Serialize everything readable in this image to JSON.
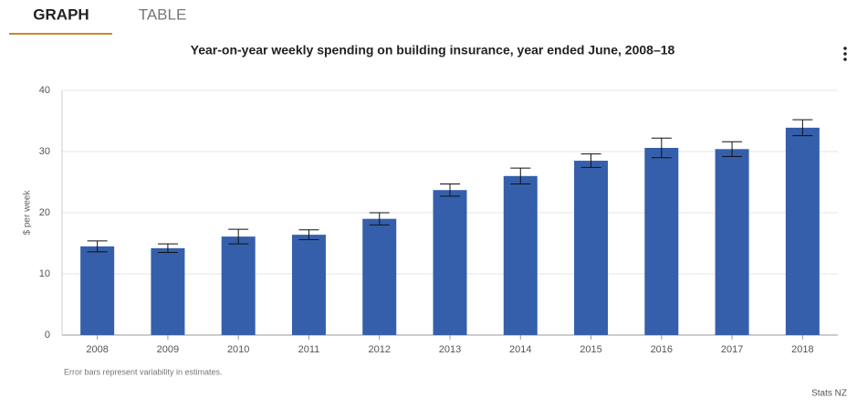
{
  "tabs": [
    "GRAPH",
    "TABLE"
  ],
  "chart_data": {
    "type": "bar",
    "title": "Year-on-year weekly spending on building insurance, year ended June, 2008–18",
    "y_label": "$ per week",
    "categories": [
      "2008",
      "2009",
      "2010",
      "2011",
      "2012",
      "2013",
      "2014",
      "2015",
      "2016",
      "2017",
      "2018"
    ],
    "values": [
      14.5,
      14.2,
      16.1,
      16.4,
      19.0,
      23.7,
      26.0,
      28.5,
      30.6,
      30.4,
      33.9
    ],
    "errors": [
      0.9,
      0.7,
      1.2,
      0.8,
      1.0,
      1.0,
      1.3,
      1.1,
      1.6,
      1.2,
      1.3
    ],
    "color": "#355fab",
    "ylim": [
      0,
      40
    ],
    "yticks": [
      0,
      10,
      20,
      30,
      40
    ],
    "grid": true,
    "note": "Error bars represent variability in estimates.",
    "source": "Stats NZ"
  }
}
